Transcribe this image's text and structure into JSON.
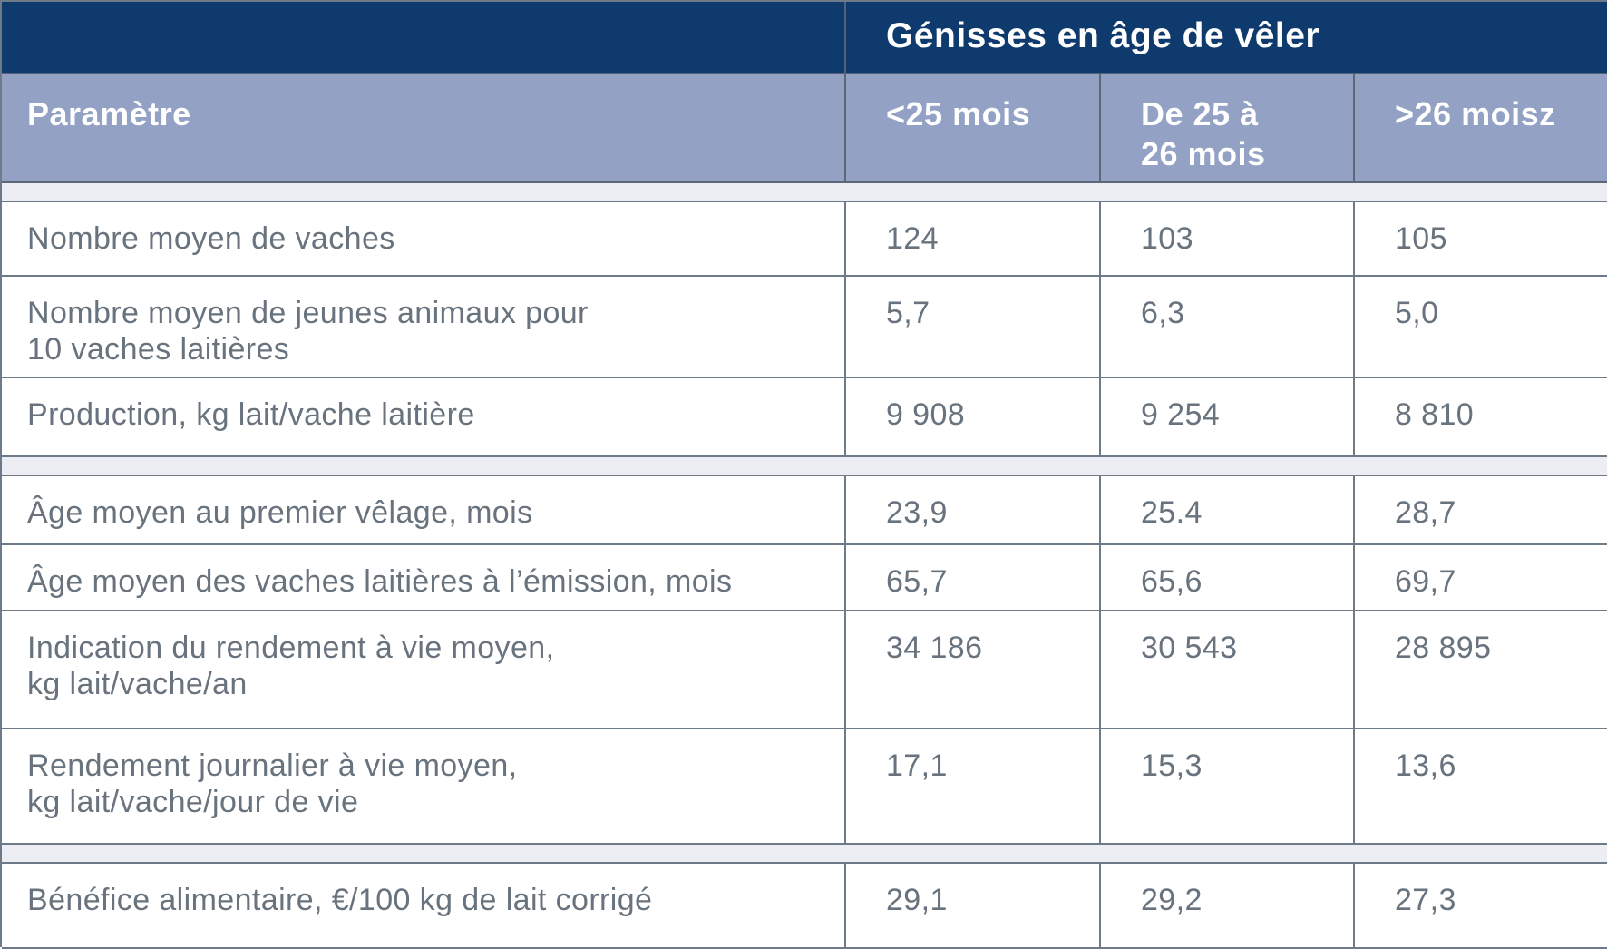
{
  "chart_data": {
    "type": "table",
    "title": "Génisses en âge de vêler",
    "columns": [
      "Paramètre",
      "<25 mois",
      "De 25 à\n26 mois",
      ">26 moisz"
    ],
    "rows": [
      [
        "Nombre moyen de vaches",
        "124",
        "103",
        "105"
      ],
      [
        "Nombre moyen de jeunes animaux pour\n10 vaches laitières",
        "5,7",
        "6,3",
        "5,0"
      ],
      [
        "Production, kg lait/vache laitière",
        "9 908",
        "9 254",
        "8 810"
      ],
      [
        "Âge moyen au premier vêlage, mois",
        "23,9",
        "25.4",
        "28,7"
      ],
      [
        "Âge moyen des vaches laitières à l’émission, mois",
        "65,7",
        "65,6",
        "69,7"
      ],
      [
        "Indication du rendement à vie moyen,\nkg lait/vache/an",
        "34 186",
        "30 543",
        "28 895"
      ],
      [
        "Rendement journalier à vie moyen,\nkg lait/vache/jour de vie",
        "17,1",
        "15,3",
        "13,6"
      ],
      [
        "Bénéfice alimentaire, €/100 kg de lait corrigé",
        "29,1",
        "29,2",
        "27,3"
      ]
    ],
    "sections": [
      [
        0,
        1,
        2
      ],
      [
        3,
        4,
        5,
        6
      ],
      [
        7
      ]
    ],
    "layout_hints": {
      "group_header_spans_value_columns": true,
      "separator_bands_between_sections": true
    }
  },
  "colors": {
    "header_navy": "#0e3a6d",
    "header_blue": "#93a2c4",
    "separator_band": "#eceef4",
    "cell_border": "#6e7a87",
    "body_text": "#68737e",
    "header_text": "#ffffff",
    "cell_background": "#ffffff"
  }
}
